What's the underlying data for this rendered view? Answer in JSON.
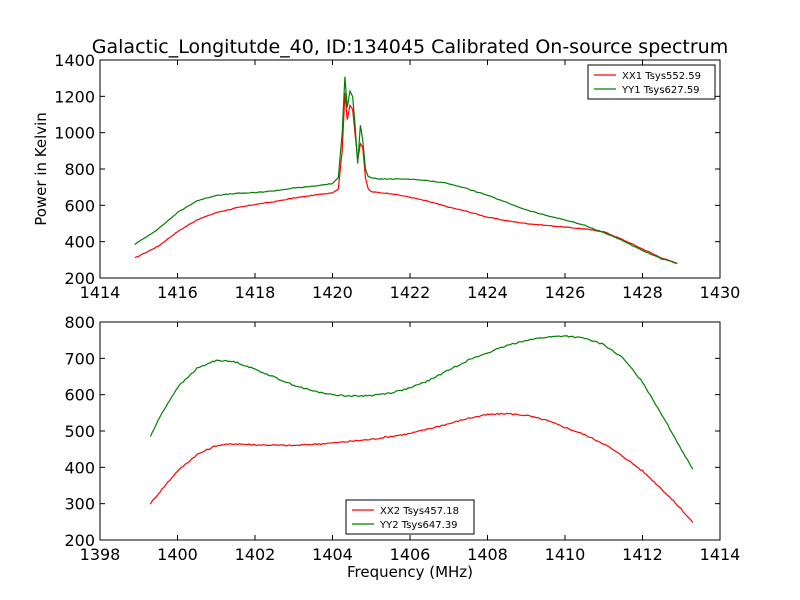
{
  "chart_data": [
    {
      "type": "line",
      "title": "Galactic_Longitutde_40, ID:134045 Calibrated On-source spectrum",
      "xlabel": "",
      "ylabel": "Power in Kelvin",
      "xlim": [
        1414,
        1430
      ],
      "ylim": [
        200,
        1400
      ],
      "xticks": [
        1414,
        1416,
        1418,
        1420,
        1422,
        1424,
        1426,
        1428,
        1430
      ],
      "yticks": [
        200,
        400,
        600,
        800,
        1000,
        1200,
        1400
      ],
      "legend_position": "top-right",
      "grid": false,
      "series": [
        {
          "name": "XX1 Tsys552.59",
          "color": "#ff0000",
          "x": [
            1414.9,
            1415.5,
            1416,
            1416.5,
            1417,
            1417.5,
            1418,
            1418.5,
            1419,
            1419.5,
            1420,
            1420.15,
            1420.25,
            1420.32,
            1420.38,
            1420.45,
            1420.52,
            1420.58,
            1420.65,
            1420.72,
            1420.78,
            1420.85,
            1420.92,
            1421.0,
            1421.2,
            1421.5,
            1422,
            1422.5,
            1423,
            1423.5,
            1424,
            1424.5,
            1425,
            1425.5,
            1426,
            1426.5,
            1427,
            1427.5,
            1428,
            1428.5,
            1428.9
          ],
          "y": [
            310,
            375,
            455,
            520,
            560,
            585,
            605,
            620,
            640,
            655,
            670,
            690,
            900,
            1220,
            1070,
            1150,
            1130,
            1000,
            850,
            940,
            920,
            750,
            690,
            675,
            670,
            665,
            645,
            620,
            590,
            565,
            535,
            515,
            500,
            490,
            480,
            470,
            455,
            410,
            360,
            310,
            280
          ]
        },
        {
          "name": "YY1 Tsys627.59",
          "color": "#008000",
          "x": [
            1414.9,
            1415.5,
            1416,
            1416.5,
            1417,
            1417.5,
            1418,
            1418.5,
            1419,
            1419.5,
            1420,
            1420.15,
            1420.25,
            1420.32,
            1420.38,
            1420.45,
            1420.52,
            1420.58,
            1420.65,
            1420.72,
            1420.78,
            1420.85,
            1420.92,
            1421.0,
            1421.2,
            1421.5,
            1422,
            1422.5,
            1423,
            1423.5,
            1424,
            1424.5,
            1425,
            1425.5,
            1426,
            1426.5,
            1427,
            1427.5,
            1428,
            1428.5,
            1428.9
          ],
          "y": [
            385,
            470,
            560,
            625,
            655,
            665,
            670,
            680,
            695,
            705,
            720,
            750,
            1000,
            1310,
            1140,
            1230,
            1200,
            1050,
            830,
            1040,
            960,
            800,
            760,
            750,
            745,
            745,
            745,
            735,
            720,
            690,
            655,
            615,
            575,
            545,
            520,
            490,
            450,
            405,
            350,
            305,
            280
          ]
        }
      ]
    },
    {
      "type": "line",
      "title": "",
      "xlabel": "Frequency (MHz)",
      "ylabel": "",
      "xlim": [
        1398,
        1414
      ],
      "ylim": [
        200,
        800
      ],
      "xticks": [
        1398,
        1400,
        1402,
        1404,
        1406,
        1408,
        1410,
        1412,
        1414
      ],
      "yticks": [
        200,
        300,
        400,
        500,
        600,
        700,
        800
      ],
      "legend_position": "bottom-center",
      "grid": false,
      "series": [
        {
          "name": "XX2 Tsys457.18",
          "color": "#ff0000",
          "x": [
            1399.3,
            1399.6,
            1400,
            1400.5,
            1401,
            1401.5,
            1402,
            1403,
            1404,
            1405,
            1406,
            1407,
            1407.5,
            1408,
            1408.5,
            1409,
            1409.5,
            1410,
            1410.5,
            1411,
            1411.5,
            1412,
            1412.5,
            1413,
            1413.3
          ],
          "y": [
            300,
            340,
            390,
            435,
            460,
            465,
            462,
            460,
            467,
            477,
            493,
            520,
            535,
            545,
            548,
            543,
            530,
            510,
            490,
            465,
            430,
            390,
            340,
            285,
            248
          ]
        },
        {
          "name": "YY2 Tsys647.39",
          "color": "#008000",
          "x": [
            1399.3,
            1399.6,
            1400,
            1400.5,
            1401,
            1401.5,
            1402,
            1402.5,
            1403,
            1403.5,
            1404,
            1404.5,
            1405,
            1405.5,
            1406,
            1406.5,
            1407,
            1407.5,
            1408,
            1408.5,
            1409,
            1409.5,
            1410,
            1410.5,
            1411,
            1411.5,
            1412,
            1412.5,
            1413,
            1413.3
          ],
          "y": [
            485,
            550,
            620,
            672,
            695,
            690,
            670,
            648,
            626,
            610,
            600,
            596,
            598,
            605,
            618,
            640,
            668,
            695,
            715,
            735,
            750,
            758,
            762,
            755,
            738,
            700,
            635,
            545,
            450,
            395
          ]
        }
      ]
    }
  ]
}
